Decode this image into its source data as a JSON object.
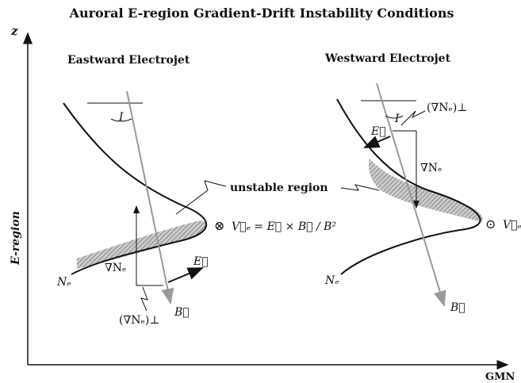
{
  "title": "Auroral E-region Gradient-Drift Instability Conditions",
  "axes": {
    "y_label": "z",
    "y_title": "E-region",
    "x_label": "GMN"
  },
  "center_label": "unstable region",
  "panels": [
    {
      "title": "Eastward Electrojet",
      "angle": "I",
      "gradient": "∇Nₑ",
      "gradient_perp": "(∇Nₑ)⊥",
      "field": "E⃗",
      "magnetic": "B⃗",
      "density": "Nₑ",
      "direction_symbol": "⊗",
      "velocity": "V⃗ₑ = E⃗ × B⃗ / B²"
    },
    {
      "title": "Westward Electrojet",
      "angle": "I",
      "gradient": "∇Nₑ",
      "gradient_perp": "(∇Nₑ)⊥",
      "field": "E⃗",
      "magnetic": "B⃗",
      "density": "Nₑ",
      "direction_symbol": "⊙",
      "velocity": "V⃗ₑ"
    }
  ]
}
